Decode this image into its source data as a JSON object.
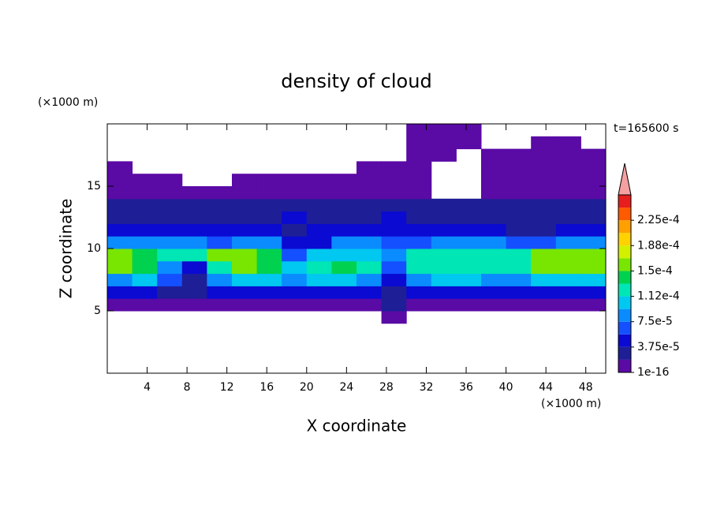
{
  "chart_data": {
    "type": "contour",
    "title": "density of cloud",
    "x_label": "X coordinate",
    "y_label": "Z coordinate",
    "x_unit": "(×1000 m)",
    "y_unit": "(×1000 m)",
    "time_label": "t=165600 s",
    "xlim": [
      0,
      50
    ],
    "xticks": [
      4,
      8,
      12,
      16,
      20,
      24,
      28,
      32,
      36,
      40,
      44,
      48
    ],
    "ylim": [
      0,
      20
    ],
    "yticks": [
      5,
      10,
      15
    ],
    "x": [
      1.25,
      3.75,
      6.25,
      8.75,
      11.25,
      13.75,
      16.25,
      18.75,
      21.25,
      23.75,
      26.25,
      28.75,
      31.25,
      33.75,
      36.25,
      38.75,
      41.25,
      43.75,
      46.25,
      48.75
    ],
    "y": [
      4.5,
      5.5,
      6.5,
      7.5,
      8.5,
      9.5,
      10.5,
      11.5,
      12.5,
      13.5,
      14.5,
      15.5,
      16.5,
      17.5,
      18.5,
      19.5
    ],
    "z": [
      [
        null,
        null,
        null,
        null,
        null,
        null,
        null,
        null,
        null,
        null,
        null,
        1e-05,
        null,
        null,
        null,
        null,
        null,
        null,
        null,
        null
      ],
      [
        1e-05,
        1e-05,
        1e-05,
        1e-05,
        1e-05,
        1e-05,
        1e-05,
        1e-05,
        1e-05,
        1e-05,
        1e-05,
        2e-05,
        1e-05,
        1e-05,
        1e-05,
        1e-05,
        1e-05,
        1e-05,
        1e-05,
        1e-05
      ],
      [
        4e-05,
        4e-05,
        3e-05,
        2e-05,
        4e-05,
        4e-05,
        5e-05,
        4e-05,
        5e-05,
        5e-05,
        4e-05,
        2e-05,
        4e-05,
        5e-05,
        5e-05,
        4e-05,
        4e-05,
        4e-05,
        4e-05,
        4e-05
      ],
      [
        9e-05,
        0.0001,
        6e-05,
        3e-05,
        8e-05,
        0.0001,
        0.0001,
        9e-05,
        0.0001,
        0.0001,
        9e-05,
        4e-05,
        8e-05,
        0.0001,
        0.0001,
        9e-05,
        9e-05,
        0.0001,
        0.0001,
        0.0001
      ],
      [
        0.00015,
        0.00014,
        8e-05,
        5e-05,
        0.00013,
        0.00015,
        0.00014,
        0.00011,
        0.00012,
        0.00014,
        0.00013,
        7e-05,
        0.00012,
        0.00013,
        0.00013,
        0.00013,
        0.00013,
        0.00015,
        0.00015,
        0.00015
      ],
      [
        0.00016,
        0.00014,
        0.00012,
        0.00013,
        0.00016,
        0.00016,
        0.00014,
        6e-05,
        0.0001,
        0.00011,
        0.00011,
        9e-05,
        0.00012,
        0.00013,
        0.00013,
        0.00012,
        0.00013,
        0.00016,
        0.00016,
        0.00016
      ],
      [
        8e-05,
        9e-05,
        8e-05,
        8e-05,
        7e-05,
        8e-05,
        8e-05,
        4e-05,
        4e-05,
        8e-05,
        8e-05,
        6e-05,
        7e-05,
        8e-05,
        8e-05,
        8e-05,
        7e-05,
        6e-05,
        8e-05,
        8e-05
      ],
      [
        5e-05,
        5e-05,
        5e-05,
        4e-05,
        4e-05,
        4e-05,
        5e-05,
        3e-05,
        4e-05,
        4e-05,
        5e-05,
        5e-05,
        5e-05,
        4e-05,
        5e-05,
        4e-05,
        3e-05,
        3e-05,
        4e-05,
        4e-05
      ],
      [
        3e-05,
        3e-05,
        3e-05,
        3e-05,
        3e-05,
        3e-05,
        3e-05,
        4e-05,
        3e-05,
        3e-05,
        3e-05,
        4e-05,
        3e-05,
        3e-05,
        3e-05,
        3e-05,
        3e-05,
        3e-05,
        3e-05,
        3e-05
      ],
      [
        2e-05,
        2e-05,
        2e-05,
        2e-05,
        2e-05,
        2e-05,
        2.5e-05,
        2e-05,
        2e-05,
        2e-05,
        2e-05,
        2e-05,
        2e-05,
        2e-05,
        2e-05,
        2e-05,
        2e-05,
        2e-05,
        2e-05,
        2e-05
      ],
      [
        1e-05,
        1e-05,
        1e-05,
        1e-05,
        1e-05,
        1e-05,
        1e-05,
        1e-05,
        1e-05,
        1e-05,
        1e-05,
        1e-05,
        1e-05,
        null,
        null,
        1e-05,
        1e-05,
        1e-05,
        1e-05,
        1e-05
      ],
      [
        1e-05,
        1e-05,
        1e-05,
        null,
        null,
        1e-05,
        1e-05,
        1e-05,
        1e-05,
        1e-05,
        1e-05,
        1e-05,
        1e-05,
        null,
        null,
        1e-05,
        1e-05,
        1e-05,
        1e-05,
        1e-05
      ],
      [
        1e-05,
        null,
        null,
        null,
        null,
        null,
        null,
        null,
        null,
        null,
        1e-05,
        1e-05,
        1e-05,
        null,
        null,
        1e-05,
        1e-05,
        1e-05,
        1e-05,
        1e-05
      ],
      [
        null,
        null,
        null,
        null,
        null,
        null,
        null,
        null,
        null,
        null,
        null,
        null,
        1e-05,
        1e-05,
        null,
        1e-05,
        1e-05,
        1e-05,
        1e-05,
        1e-05
      ],
      [
        null,
        null,
        null,
        null,
        null,
        null,
        null,
        null,
        null,
        null,
        null,
        null,
        1e-05,
        1e-05,
        1e-05,
        null,
        null,
        1e-05,
        1e-05,
        null
      ],
      [
        null,
        null,
        null,
        null,
        null,
        null,
        null,
        null,
        null,
        null,
        null,
        null,
        1e-05,
        1e-05,
        1e-05,
        null,
        null,
        null,
        null,
        null
      ]
    ],
    "levels": [
      1e-16,
      1.875e-05,
      3.75e-05,
      5.625e-05,
      7.5e-05,
      9.375e-05,
      0.0001125,
      0.00013125,
      0.00015,
      0.00016875,
      0.0001875,
      0.00020625,
      0.000225,
      0.00024375
    ],
    "colors": [
      "#5a0aa5",
      "#1e1e96",
      "#0a0ad2",
      "#1450ff",
      "#0a8cff",
      "#00c8f0",
      "#00e6b4",
      "#00d250",
      "#78e600",
      "#d2f000",
      "#ffd200",
      "#ffa000",
      "#ff5a00",
      "#e61e1e"
    ],
    "extend_color": "#f5a0a0",
    "cbar_ticks": [
      {
        "value": 1e-16,
        "label": "1e-16"
      },
      {
        "value": 3.75e-05,
        "label": "3.75e-5"
      },
      {
        "value": 7.5e-05,
        "label": "7.5e-5"
      },
      {
        "value": 0.0001125,
        "label": "1.12e-4"
      },
      {
        "value": 0.00015,
        "label": "1.5e-4"
      },
      {
        "value": 0.0001875,
        "label": "1.88e-4"
      },
      {
        "value": 0.000225,
        "label": "2.25e-4"
      }
    ]
  }
}
